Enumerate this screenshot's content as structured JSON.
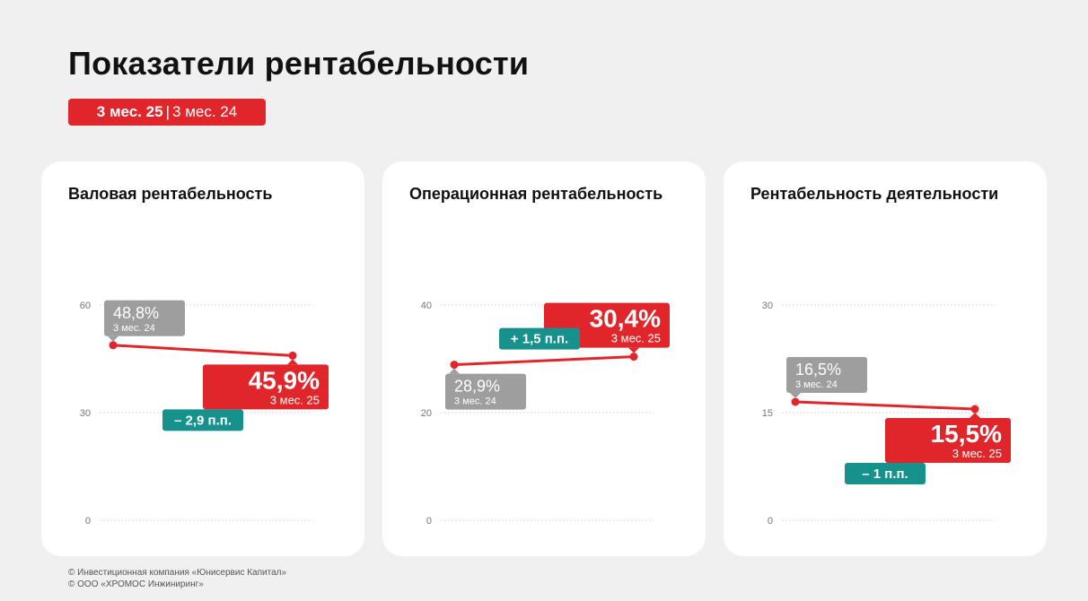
{
  "page": {
    "title": "Показатели рентабельности",
    "period_current": "3 мес. 25",
    "period_separator": "|",
    "period_previous": "3 мес. 24",
    "footer": [
      "© Инвестиционная компания «Юнисервис Капитал»",
      "© ООО «ХРОМОС Инжиниринг»"
    ]
  },
  "colors": {
    "accent": "#e0262b",
    "previous_label_bg": "#9e9e9e",
    "delta_bg": "#17918c",
    "grid": "#d9d9d9",
    "axis_text": "#777777",
    "background": "#f0f0f0"
  },
  "chart_data": [
    {
      "type": "line",
      "title": "Валовая рентабельность",
      "ylim": [
        0,
        60
      ],
      "yticks": [
        0,
        30,
        60
      ],
      "grid": true,
      "x": [
        "3 мес. 24",
        "3 мес. 25"
      ],
      "series": [
        {
          "values": [
            48.8,
            45.9
          ]
        }
      ],
      "data_labels": [
        {
          "value": "48,8%",
          "period": "3 мес. 24",
          "style": "previous",
          "side": "above"
        },
        {
          "value": "45,9%",
          "period": "3 мес. 25",
          "style": "current",
          "side": "below"
        }
      ],
      "delta": {
        "text": "– 2,9 п.п.",
        "side": "below"
      }
    },
    {
      "type": "line",
      "title": "Операционная рентабельность",
      "ylim": [
        0,
        40
      ],
      "yticks": [
        0,
        20,
        40
      ],
      "grid": true,
      "x": [
        "3 мес. 24",
        "3 мес. 25"
      ],
      "series": [
        {
          "values": [
            28.9,
            30.4
          ]
        }
      ],
      "data_labels": [
        {
          "value": "28,9%",
          "period": "3 мес. 24",
          "style": "previous",
          "side": "below"
        },
        {
          "value": "30,4%",
          "period": "3 мес. 25",
          "style": "current",
          "side": "above"
        }
      ],
      "delta": {
        "text": "+ 1,5 п.п.",
        "side": "above"
      }
    },
    {
      "type": "line",
      "title": "Рентабельность деятельности",
      "ylim": [
        0,
        30
      ],
      "yticks": [
        0,
        15,
        30
      ],
      "grid": true,
      "x": [
        "3 мес. 24",
        "3 мес. 25"
      ],
      "series": [
        {
          "values": [
            16.5,
            15.5
          ]
        }
      ],
      "data_labels": [
        {
          "value": "16,5%",
          "period": "3 мес. 24",
          "style": "previous",
          "side": "above"
        },
        {
          "value": "15,5%",
          "period": "3 мес. 25",
          "style": "current",
          "side": "below"
        }
      ],
      "delta": {
        "text": "– 1 п.п.",
        "side": "below"
      }
    }
  ]
}
